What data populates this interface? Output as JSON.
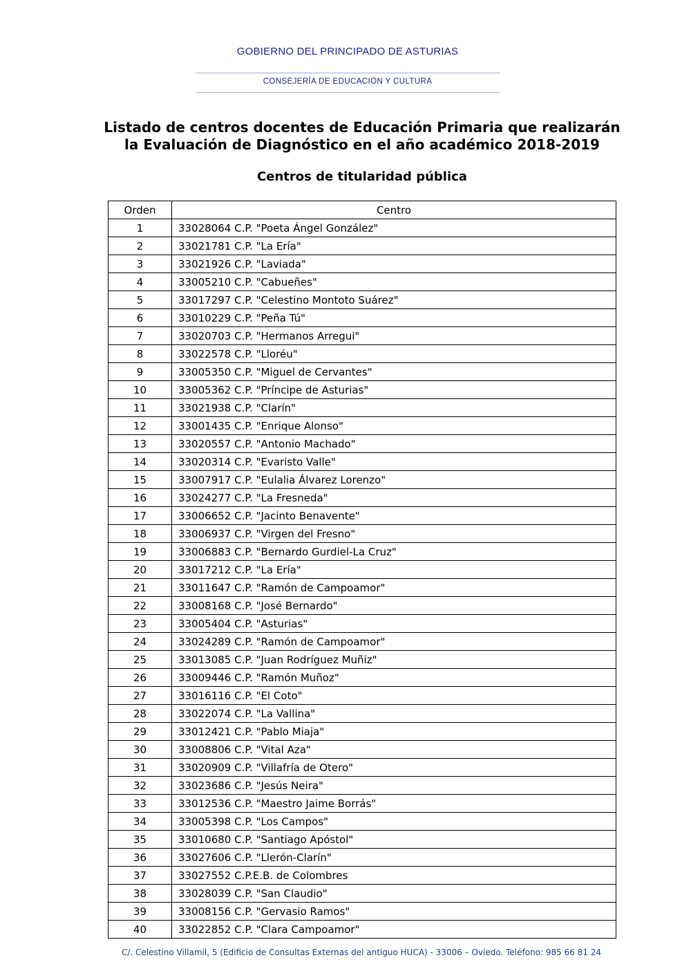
{
  "header": {
    "government": "GOBIERNO DEL PRINCIPADO DE ASTURIAS",
    "department": "CONSEJERÍA DE EDUCACIÓN Y CULTURA"
  },
  "title_line1": "Listado de centros docentes de Educación Primaria que realizarán",
  "title_line2": "la Evaluación de Diagnóstico en el año académico 2018-2019",
  "subtitle": "Centros de titularidad pública",
  "table": {
    "columns": [
      "Orden",
      "Centro"
    ],
    "rows": [
      [
        "1",
        "33028064 C.P. \"Poeta Ángel González\""
      ],
      [
        "2",
        "33021781 C.P. \"La Ería\""
      ],
      [
        "3",
        "33021926 C.P. \"Laviada\""
      ],
      [
        "4",
        "33005210 C.P. \"Cabueñes\""
      ],
      [
        "5",
        "33017297 C.P. \"Celestino Montoto Suárez\""
      ],
      [
        "6",
        "33010229 C.P. \"Peña Tú\""
      ],
      [
        "7",
        "33020703 C.P. \"Hermanos Arregui\""
      ],
      [
        "8",
        "33022578 C.P. \"Lloréu\""
      ],
      [
        "9",
        "33005350 C.P. \"Miguel de Cervantes\""
      ],
      [
        "10",
        "33005362 C.P. \"Príncipe de Asturias\""
      ],
      [
        "11",
        "33021938 C.P. \"Clarín\""
      ],
      [
        "12",
        "33001435 C.P. \"Enrique Alonso\""
      ],
      [
        "13",
        "33020557 C.P. \"Antonio Machado\""
      ],
      [
        "14",
        "33020314 C.P. \"Evaristo Valle\""
      ],
      [
        "15",
        "33007917 C.P. \"Eulalia Álvarez Lorenzo\""
      ],
      [
        "16",
        "33024277 C.P. \"La Fresneda\""
      ],
      [
        "17",
        "33006652 C.P. \"Jacinto Benavente\""
      ],
      [
        "18",
        "33006937 C.P. \"Virgen del Fresno\""
      ],
      [
        "19",
        "33006883 C.P. \"Bernardo Gurdiel-La Cruz\""
      ],
      [
        "20",
        "33017212 C.P. \"La Ería\""
      ],
      [
        "21",
        "33011647 C.P. \"Ramón de Campoamor\""
      ],
      [
        "22",
        "33008168 C.P. \"José Bernardo\""
      ],
      [
        "23",
        "33005404 C.P. \"Asturias\""
      ],
      [
        "24",
        "33024289 C.P. \"Ramón de Campoamor\""
      ],
      [
        "25",
        "33013085 C.P. \"Juan Rodríguez Muñiz\""
      ],
      [
        "26",
        "33009446 C.P. \"Ramón Muñoz\""
      ],
      [
        "27",
        "33016116 C.P. \"El Coto\""
      ],
      [
        "28",
        "33022074 C.P. \"La Vallina\""
      ],
      [
        "29",
        "33012421 C.P. \"Pablo Miaja\""
      ],
      [
        "30",
        "33008806 C.P. \"Vital Aza\""
      ],
      [
        "31",
        "33020909 C.P. \"Villafría de Otero\""
      ],
      [
        "32",
        "33023686 C.P. \"Jesús Neira\""
      ],
      [
        "33",
        "33012536 C.P. \"Maestro Jaime Borrás\""
      ],
      [
        "34",
        "33005398 C.P. \"Los Campos\""
      ],
      [
        "35",
        "33010680 C.P. \"Santiago Apóstol\""
      ],
      [
        "36",
        "33027606 C.P. \"Llerón-Clarín\""
      ],
      [
        "37",
        "33027552 C.P.E.B. de Colombres"
      ],
      [
        "38",
        "33028039 C.P. \"San Claudio\""
      ],
      [
        "39",
        "33008156 C.P. \"Gervasio Ramos\""
      ],
      [
        "40",
        "33022852 C.P. \"Clara Campoamor\""
      ]
    ]
  },
  "footer": "C/. Celestino Villamil, 5 (Edificio de Consultas Externas del antiguo HUCA) - 33006 – Oviedo. Teléfono: 985 66 81 24",
  "colors": {
    "header_blue": "#1d1f8c",
    "footer_blue": "#1d3e8c"
  }
}
